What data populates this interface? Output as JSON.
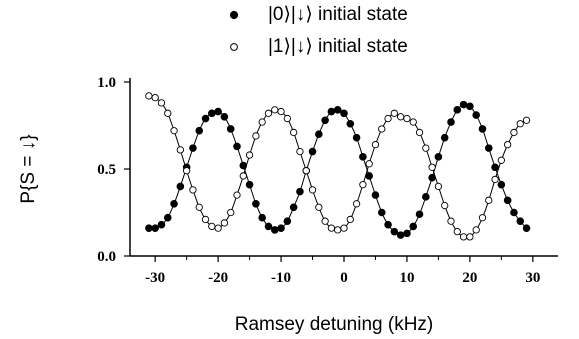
{
  "chart_data": {
    "type": "scatter",
    "xlabel": "Ramsey detuning (kHz)",
    "ylabel": "P{S = ↓}",
    "xlim": [
      -34,
      34
    ],
    "ylim": [
      0,
      1
    ],
    "xticks": [
      -30,
      -20,
      -10,
      0,
      10,
      20,
      30
    ],
    "xtick_labels": [
      "-30",
      "-20",
      "-10",
      "0",
      "10",
      "20",
      "30"
    ],
    "yticks": [
      0.0,
      0.5,
      1.0
    ],
    "ytick_labels": [
      "0.0",
      "0.5",
      "1.0"
    ],
    "grid": false,
    "legend_position": "top",
    "series": [
      {
        "name": "|0⟩|↓⟩ initial state",
        "marker": "filled-circle",
        "color": "#000000",
        "x": [
          -31.0,
          -30.0,
          -29.0,
          -28.0,
          -27.0,
          -26.0,
          -25.0,
          -24.0,
          -23.0,
          -22.0,
          -21.0,
          -20.0,
          -19.0,
          -18.0,
          -17.0,
          -16.0,
          -15.0,
          -14.0,
          -13.0,
          -12.0,
          -11.0,
          -10.0,
          -9.0,
          -8.0,
          -7.0,
          -6.0,
          -5.0,
          -4.0,
          -3.0,
          -2.0,
          -1.0,
          0.0,
          1.0,
          2.0,
          3.0,
          4.0,
          5.0,
          6.0,
          7.0,
          8.0,
          9.0,
          10.0,
          11.0,
          12.0,
          13.0,
          14.0,
          15.0,
          16.0,
          17.0,
          18.0,
          19.0,
          20.0,
          21.0,
          22.0,
          23.0,
          24.0,
          25.0,
          26.0,
          27.0,
          28.0,
          29.0
        ],
        "y": [
          0.16,
          0.16,
          0.18,
          0.22,
          0.3,
          0.4,
          0.51,
          0.62,
          0.72,
          0.79,
          0.82,
          0.83,
          0.8,
          0.73,
          0.63,
          0.52,
          0.41,
          0.3,
          0.22,
          0.17,
          0.15,
          0.16,
          0.2,
          0.28,
          0.37,
          0.49,
          0.6,
          0.7,
          0.78,
          0.83,
          0.84,
          0.82,
          0.76,
          0.68,
          0.57,
          0.46,
          0.35,
          0.25,
          0.18,
          0.14,
          0.12,
          0.13,
          0.17,
          0.24,
          0.34,
          0.45,
          0.57,
          0.68,
          0.77,
          0.84,
          0.87,
          0.86,
          0.81,
          0.73,
          0.62,
          0.51,
          0.41,
          0.32,
          0.25,
          0.2,
          0.16
        ]
      },
      {
        "name": "|1⟩|↓⟩ initial state",
        "marker": "open-circle",
        "color": "#000000",
        "x": [
          -31.0,
          -30.0,
          -29.0,
          -28.0,
          -27.0,
          -26.0,
          -25.0,
          -24.0,
          -23.0,
          -22.0,
          -21.0,
          -20.0,
          -19.0,
          -18.0,
          -17.0,
          -16.0,
          -15.0,
          -14.0,
          -13.0,
          -12.0,
          -11.0,
          -10.0,
          -9.0,
          -8.0,
          -7.0,
          -6.0,
          -5.0,
          -4.0,
          -3.0,
          -2.0,
          -1.0,
          0.0,
          1.0,
          2.0,
          3.0,
          4.0,
          5.0,
          6.0,
          7.0,
          8.0,
          9.0,
          10.0,
          11.0,
          12.0,
          13.0,
          14.0,
          15.0,
          16.0,
          17.0,
          18.0,
          19.0,
          20.0,
          21.0,
          22.0,
          23.0,
          24.0,
          25.0,
          26.0,
          27.0,
          28.0,
          29.0
        ],
        "y": [
          0.92,
          0.91,
          0.88,
          0.82,
          0.72,
          0.61,
          0.49,
          0.38,
          0.28,
          0.21,
          0.17,
          0.16,
          0.19,
          0.25,
          0.35,
          0.46,
          0.58,
          0.69,
          0.77,
          0.82,
          0.84,
          0.83,
          0.79,
          0.71,
          0.6,
          0.49,
          0.38,
          0.28,
          0.2,
          0.16,
          0.15,
          0.16,
          0.21,
          0.3,
          0.41,
          0.53,
          0.64,
          0.73,
          0.79,
          0.82,
          0.8,
          0.79,
          0.77,
          0.71,
          0.62,
          0.51,
          0.4,
          0.29,
          0.2,
          0.14,
          0.11,
          0.11,
          0.15,
          0.22,
          0.32,
          0.44,
          0.55,
          0.64,
          0.71,
          0.76,
          0.78
        ]
      }
    ],
    "fit_curves": true
  }
}
